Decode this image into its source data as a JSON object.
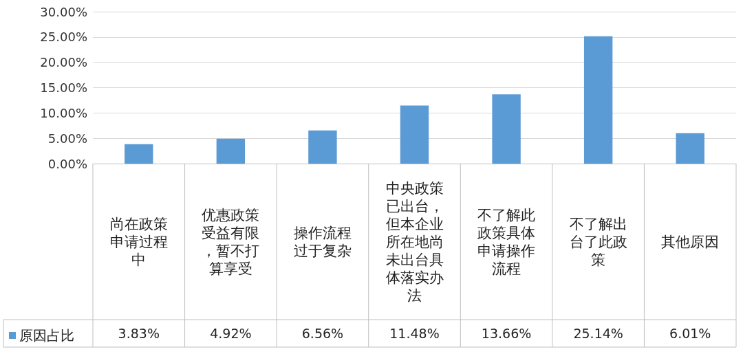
{
  "chart_data": {
    "type": "bar",
    "categories": [
      "尚在政策申请过程中",
      "优惠政策受益有限，暂不打算享受",
      "操作流程过于复杂",
      "中央政策已出台，但本企业所在地尚未出台具体落实办法",
      "不了解此政策具体申请操作流程",
      "不了解出台了此政策",
      "其他原因"
    ],
    "series": [
      {
        "name": "原因占比",
        "color": "#5b9bd5",
        "values": [
          3.83,
          4.92,
          6.56,
          11.48,
          13.66,
          25.14,
          6.01
        ],
        "value_labels": [
          "3.83%",
          "4.92%",
          "6.56%",
          "11.48%",
          "13.66%",
          "25.14%",
          "6.01%"
        ]
      }
    ],
    "ylim": [
      0,
      30
    ],
    "yticks": [
      {
        "value": 0,
        "label": "0.00%"
      },
      {
        "value": 5,
        "label": "5.00%"
      },
      {
        "value": 10,
        "label": "10.00%"
      },
      {
        "value": 15,
        "label": "15.00%"
      },
      {
        "value": 20,
        "label": "20.00%"
      },
      {
        "value": 25,
        "label": "25.00%"
      },
      {
        "value": 30,
        "label": "30.00%"
      }
    ],
    "grid": "y",
    "legend": "bottom"
  }
}
